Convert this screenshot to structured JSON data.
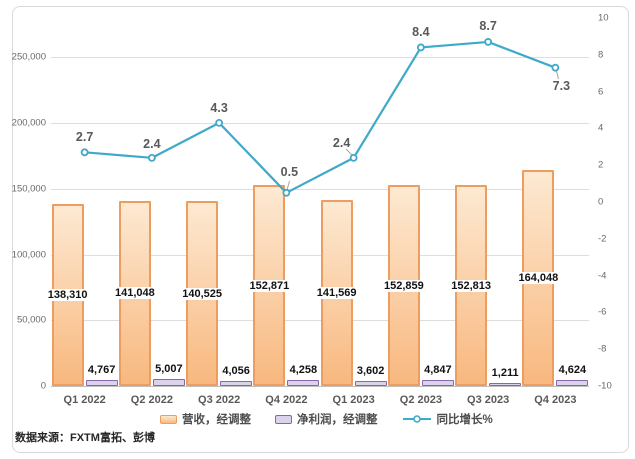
{
  "chart_data": {
    "type": "combo bar+line",
    "categories": [
      "Q1 2022",
      "Q2 2022",
      "Q3 2022",
      "Q4 2022",
      "Q1 2023",
      "Q2 2023",
      "Q3 2023",
      "Q4 2023"
    ],
    "series": [
      {
        "name": "营收，经调整",
        "type": "bar",
        "axis": "left",
        "values": [
          138310,
          141048,
          140525,
          152871,
          141569,
          152859,
          152813,
          164048
        ],
        "labels": [
          "138,310",
          "141,048",
          "140,525",
          "152,871",
          "141,569",
          "152,859",
          "152,813",
          "164,048"
        ]
      },
      {
        "name": "净利润，经调整",
        "type": "bar",
        "axis": "left",
        "values": [
          4767,
          5007,
          4056,
          4258,
          3602,
          4847,
          1211,
          4624
        ],
        "labels": [
          "4,767",
          "5,007",
          "4,056",
          "4,258",
          "3,602",
          "4,847",
          "1,211",
          "4,624"
        ]
      },
      {
        "name": "同比增长%",
        "type": "line",
        "axis": "right",
        "values": [
          2.7,
          2.4,
          4.3,
          0.5,
          2.4,
          8.4,
          8.7,
          7.3
        ],
        "labels": [
          "2.7",
          "2.4",
          "4.3",
          "0.5",
          "2.4",
          "8.4",
          "8.7",
          "7.3"
        ]
      }
    ],
    "left_axis": {
      "min": 0,
      "max": 280000,
      "tick_values": [
        0,
        50000,
        100000,
        150000,
        200000,
        250000
      ],
      "tick_labels": [
        "0",
        "50,000",
        "100,000",
        "150,000",
        "200,000",
        "250,000"
      ]
    },
    "right_axis": {
      "min": -10,
      "max": 10,
      "step": 2,
      "tick_labels": [
        "10",
        "8",
        "6",
        "4",
        "2",
        "0",
        "-2",
        "-4",
        "-6",
        "-8",
        "-10"
      ]
    },
    "grid": true,
    "legend_position": "bottom",
    "title": ""
  },
  "source_note": "数据来源：FXTM富拓、彭博",
  "colors": {
    "revenue_fill_top": "#FDE9D2",
    "revenue_fill_bottom": "#F8B87F",
    "revenue_border": "#ED9D60",
    "netprofit_fill": "#DCD2EB",
    "netprofit_border": "#8468A8",
    "line": "#3FA9C9",
    "grid": "#DEDEDE",
    "axis_text": "#696969",
    "category_text": "#595959",
    "frame_border": "#D9D9D9"
  }
}
